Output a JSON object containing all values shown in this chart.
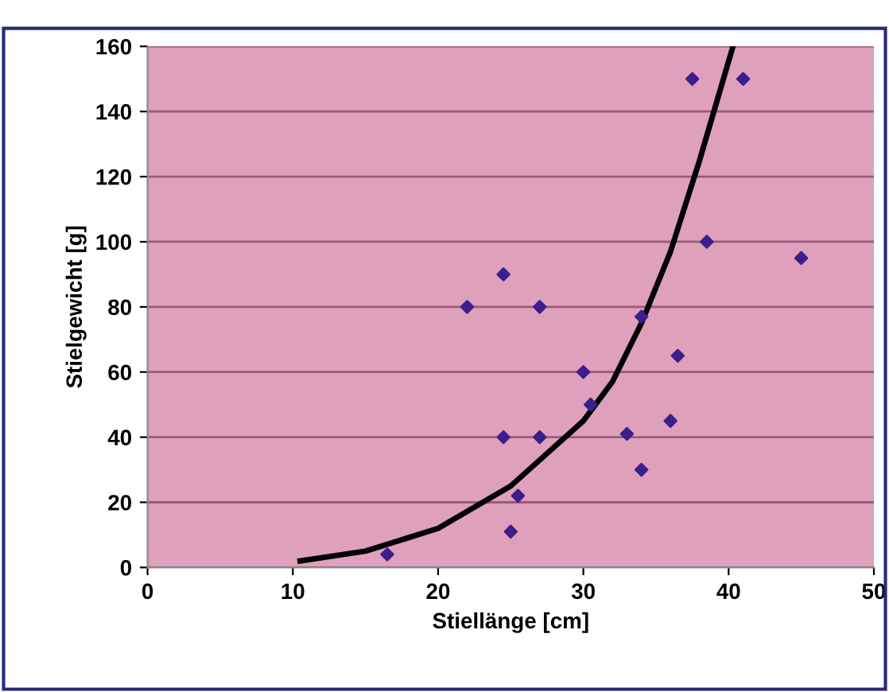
{
  "chart_data": {
    "type": "scatter",
    "xlabel": "Stiellänge [cm]",
    "ylabel": "Stielgewicht [g]",
    "xlim": [
      0,
      50
    ],
    "ylim": [
      0,
      160
    ],
    "xticks": [
      0,
      10,
      20,
      30,
      40,
      50
    ],
    "yticks": [
      0,
      20,
      40,
      60,
      80,
      100,
      120,
      140,
      160
    ],
    "grid": "y",
    "marker": "diamond",
    "legend": false,
    "series": [
      {
        "color": "#3c1e8c",
        "x": [
          16.5,
          22,
          24.5,
          24.5,
          25,
          25.5,
          27,
          27,
          30,
          30.5,
          33,
          34,
          34,
          36,
          36.5,
          37.5,
          38.5,
          41,
          45
        ],
        "values": [
          4,
          80,
          90,
          40,
          11,
          22,
          80,
          40,
          60,
          50,
          41,
          30,
          77,
          45,
          65,
          150,
          100,
          150,
          95
        ]
      },
      {
        "type": "line",
        "color": "#000000",
        "marker": "none",
        "line_style": "solid",
        "x": [
          10.5,
          15,
          20,
          25,
          27,
          30,
          32,
          34,
          36,
          38,
          40.3
        ],
        "values": [
          2,
          5,
          12,
          25,
          33,
          45,
          57,
          75,
          97,
          125,
          160
        ]
      }
    ]
  }
}
